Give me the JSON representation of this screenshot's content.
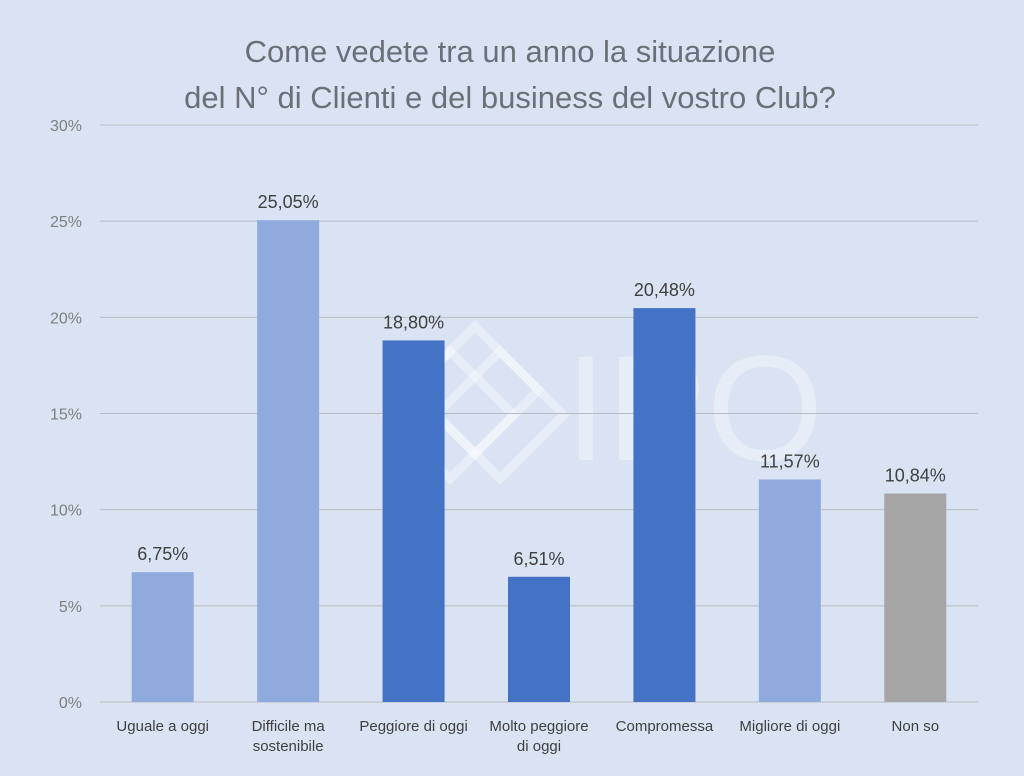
{
  "chart_data": {
    "type": "bar",
    "title_lines": [
      "Come vedete tra un anno la situazione",
      "del N° di Clienti e del business del vostro Club?"
    ],
    "xlabel": "",
    "ylabel": "",
    "ylim": [
      0,
      30
    ],
    "y_ticks": [
      0,
      5,
      10,
      15,
      20,
      25,
      30
    ],
    "y_tick_labels": [
      "0%",
      "5%",
      "10%",
      "15%",
      "20%",
      "25%",
      "30%"
    ],
    "grid": true,
    "legend": "none",
    "watermark": "IPO",
    "categories": [
      [
        "Uguale a oggi"
      ],
      [
        "Difficile ma",
        "sostenibile"
      ],
      [
        "Peggiore di oggi"
      ],
      [
        "Molto peggiore",
        "di oggi"
      ],
      [
        "Compromessa"
      ],
      [
        "Migliore di oggi"
      ],
      [
        "Non so"
      ]
    ],
    "values": [
      6.75,
      25.05,
      18.8,
      6.51,
      20.48,
      11.57,
      10.84
    ],
    "value_labels": [
      "6,75%",
      "25,05%",
      "18,80%",
      "6,51%",
      "20,48%",
      "11,57%",
      "10,84%"
    ],
    "colors": [
      "#8faadc",
      "#8faadc",
      "#4472c4",
      "#4472c4",
      "#4472c4",
      "#8faadc",
      "#a5a5a5"
    ]
  }
}
